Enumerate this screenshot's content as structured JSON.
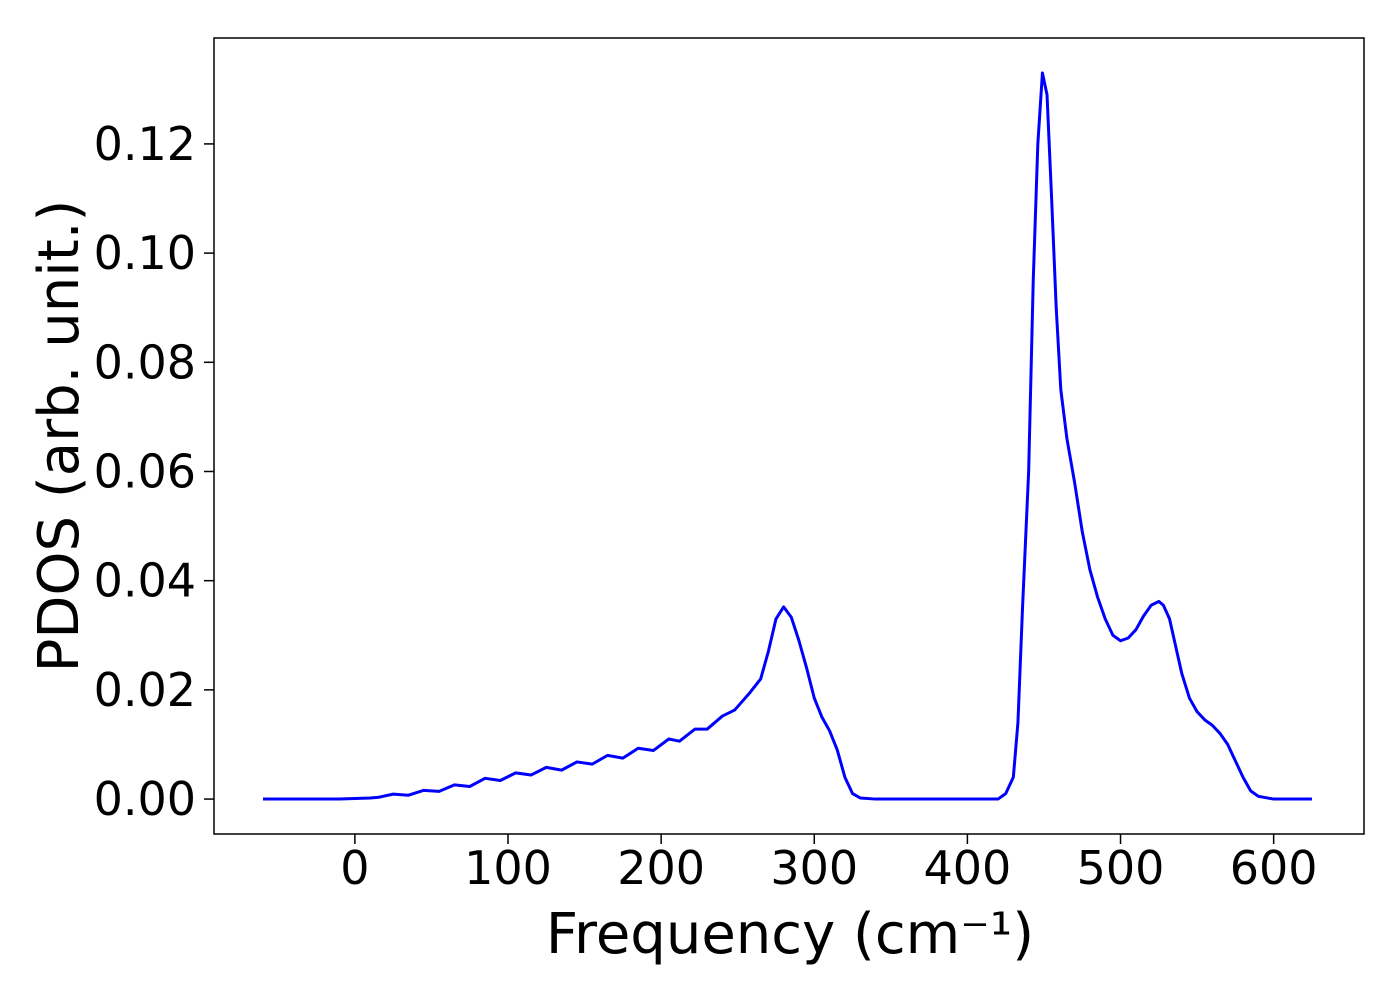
{
  "chart_data": {
    "type": "line",
    "xlabel": "Frequency (cm⁻¹)",
    "ylabel": "PDOS (arb. unit.)",
    "xlim": [
      -92,
      659
    ],
    "ylim": [
      -0.0064,
      0.1394
    ],
    "xticks": [
      0,
      100,
      200,
      300,
      400,
      500,
      600
    ],
    "yticks": [
      {
        "value": 0,
        "label": "0.00"
      },
      0.02,
      0.04,
      0.06,
      0.08,
      {
        "value": 0.1,
        "label": "0.10"
      },
      0.12
    ],
    "grid": false,
    "x": [
      -60,
      -10,
      10,
      15,
      25,
      35,
      45,
      55,
      65,
      75,
      85,
      95,
      105,
      115,
      125,
      135,
      145,
      155,
      165,
      175,
      185,
      195,
      205,
      212,
      222,
      230,
      240,
      248,
      258,
      265,
      270,
      275,
      280,
      285,
      290,
      295,
      300,
      305,
      310,
      315,
      320,
      325,
      330,
      340,
      420,
      425,
      430,
      433,
      436,
      440,
      443,
      446,
      449,
      452,
      455,
      458,
      461,
      465,
      470,
      475,
      480,
      485,
      490,
      495,
      500,
      505,
      510,
      515,
      520,
      525,
      528,
      532,
      536,
      540,
      545,
      550,
      555,
      560,
      565,
      570,
      575,
      580,
      585,
      590,
      600,
      625
    ],
    "series": [
      {
        "color": "#0000ff",
        "values": [
          0,
          0,
          0.0002,
          0.0003,
          0.0009,
          0.0007,
          0.0016,
          0.0014,
          0.0026,
          0.0023,
          0.0038,
          0.0034,
          0.0048,
          0.0044,
          0.0058,
          0.0053,
          0.0068,
          0.0064,
          0.008,
          0.0075,
          0.0093,
          0.0089,
          0.011,
          0.0106,
          0.0128,
          0.0128,
          0.0152,
          0.0163,
          0.0195,
          0.022,
          0.027,
          0.033,
          0.0352,
          0.0333,
          0.029,
          0.024,
          0.0185,
          0.015,
          0.0125,
          0.009,
          0.004,
          0.001,
          0.0002,
          0,
          0,
          0.001,
          0.004,
          0.014,
          0.035,
          0.06,
          0.095,
          0.12,
          0.133,
          0.129,
          0.11,
          0.09,
          0.075,
          0.066,
          0.058,
          0.049,
          0.042,
          0.037,
          0.033,
          0.03,
          0.029,
          0.0295,
          0.031,
          0.0335,
          0.0355,
          0.0362,
          0.0355,
          0.033,
          0.028,
          0.023,
          0.0185,
          0.016,
          0.0145,
          0.0135,
          0.012,
          0.01,
          0.007,
          0.004,
          0.0015,
          0.0005,
          0,
          0
        ]
      }
    ]
  }
}
